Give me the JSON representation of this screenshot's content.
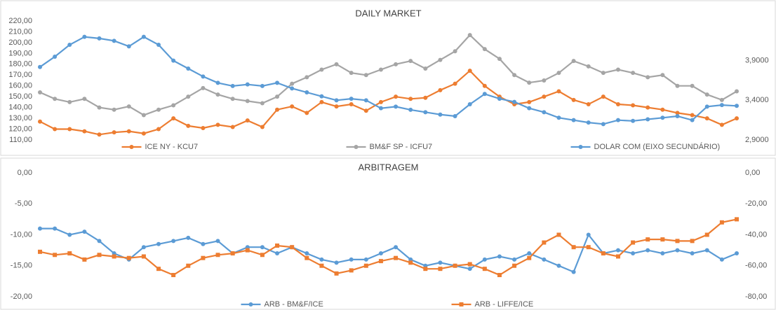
{
  "chart_data": [
    {
      "type": "line",
      "title": "DAILY MARKET",
      "ylim": [
        110,
        220
      ],
      "yticks": [
        {
          "value": 110,
          "label": "110,00"
        },
        {
          "value": 120,
          "label": "120,00"
        },
        {
          "value": 130,
          "label": "130,00"
        },
        {
          "value": 140,
          "label": "140,00"
        },
        {
          "value": 150,
          "label": "150,00"
        },
        {
          "value": 160,
          "label": "160,00"
        },
        {
          "value": 170,
          "label": "170,00"
        },
        {
          "value": 180,
          "label": "180,00"
        },
        {
          "value": 190,
          "label": "190,00"
        },
        {
          "value": 200,
          "label": "200,00"
        },
        {
          "value": 210,
          "label": "210,00"
        },
        {
          "value": 220,
          "label": "220,00"
        }
      ],
      "y2lim": [
        2.9,
        4.4
      ],
      "y2ticks": [
        {
          "value": 2.9,
          "label": "2,9000"
        },
        {
          "value": 3.4,
          "label": "3,4000"
        },
        {
          "value": 3.9,
          "label": "3,9000"
        }
      ],
      "grid": false,
      "legend": "bottom",
      "series": [
        {
          "name": "ICE NY - KCU7",
          "color": "#ed7d31",
          "marker": "circle",
          "values": [
            127,
            120,
            120,
            118,
            115,
            117,
            118,
            116,
            120,
            130,
            123,
            121,
            124,
            122,
            128,
            122,
            138,
            141,
            135,
            145,
            141,
            143,
            137,
            145,
            150,
            148,
            149,
            156,
            162,
            174,
            160,
            150,
            143,
            145,
            150,
            155,
            147,
            143,
            150,
            143,
            142,
            140,
            138,
            135,
            133,
            130,
            124,
            130
          ]
        },
        {
          "name": "BM&F SP - ICFU7",
          "color": "#a5a5a5",
          "marker": "circle",
          "values": [
            154,
            148,
            145,
            148,
            140,
            138,
            141,
            133,
            138,
            142,
            150,
            158,
            152,
            148,
            146,
            144,
            150,
            162,
            168,
            175,
            180,
            172,
            170,
            175,
            180,
            183,
            176,
            184,
            192,
            207,
            194,
            185,
            170,
            163,
            165,
            172,
            183,
            178,
            172,
            175,
            172,
            168,
            170,
            160,
            160,
            152,
            147,
            155
          ]
        },
        {
          "name": "DOLAR COM (EIXO SECUNDÁRIO)",
          "color": "#5b9bd5",
          "marker": "circle",
          "axis": "y2",
          "values": [
            3.82,
            3.95,
            4.1,
            4.2,
            4.18,
            4.15,
            4.08,
            4.2,
            4.1,
            3.9,
            3.8,
            3.7,
            3.62,
            3.58,
            3.6,
            3.58,
            3.62,
            3.55,
            3.5,
            3.45,
            3.4,
            3.42,
            3.4,
            3.3,
            3.32,
            3.28,
            3.25,
            3.22,
            3.2,
            3.35,
            3.48,
            3.42,
            3.38,
            3.3,
            3.25,
            3.18,
            3.15,
            3.12,
            3.1,
            3.15,
            3.14,
            3.16,
            3.18,
            3.2,
            3.15,
            3.32,
            3.34,
            3.33
          ]
        }
      ]
    },
    {
      "type": "line",
      "title": "ARBITRAGEM",
      "ylim": [
        -20,
        0
      ],
      "yticks": [
        {
          "value": -20,
          "label": "-20,00"
        },
        {
          "value": -15,
          "label": "-15,00"
        },
        {
          "value": -10,
          "label": "-10,00"
        },
        {
          "value": -5,
          "label": "-5,00"
        },
        {
          "value": 0,
          "label": "0,00"
        }
      ],
      "y2lim": [
        -80,
        0
      ],
      "y2ticks": [
        {
          "value": -80,
          "label": "-80,00"
        },
        {
          "value": -60,
          "label": "-60,00"
        },
        {
          "value": -40,
          "label": "-40,00"
        },
        {
          "value": -20,
          "label": "-20,00"
        },
        {
          "value": 0,
          "label": "0,00"
        }
      ],
      "grid": false,
      "legend": "bottom",
      "series": [
        {
          "name": "ARB - BM&F/ICE",
          "color": "#5b9bd5",
          "marker": "circle",
          "values": [
            -9,
            -9,
            -10,
            -9.5,
            -11,
            -13,
            -14,
            -12,
            -11.5,
            -11,
            -10.5,
            -11.5,
            -11,
            -13,
            -12,
            -12,
            -13,
            -12,
            -13,
            -14,
            -14.5,
            -14,
            -14,
            -13,
            -12,
            -14,
            -15,
            -14.5,
            -15,
            -15.5,
            -14,
            -13.5,
            -14,
            -13,
            -14,
            -15,
            -16,
            -10,
            -13,
            -12.5,
            -13,
            -12.5,
            -13,
            -12.5,
            -13,
            -12.5,
            -14,
            -13
          ]
        },
        {
          "name": "ARB - LIFFE/ICE",
          "color": "#ed7d31",
          "marker": "square",
          "axis": "y2",
          "values": [
            -51,
            -53,
            -52,
            -56,
            -53,
            -54,
            -55,
            -54,
            -62,
            -66,
            -60,
            -55,
            -53,
            -52,
            -50,
            -53,
            -47,
            -48,
            -55,
            -60,
            -65,
            -63,
            -60,
            -57,
            -55,
            -58,
            -62,
            -62,
            -60,
            -59,
            -62,
            -66,
            -60,
            -55,
            -45,
            -40,
            -48,
            -48,
            -52,
            -54,
            -45,
            -43,
            -43,
            -44,
            -44,
            -40,
            -32,
            -30
          ]
        }
      ]
    }
  ]
}
